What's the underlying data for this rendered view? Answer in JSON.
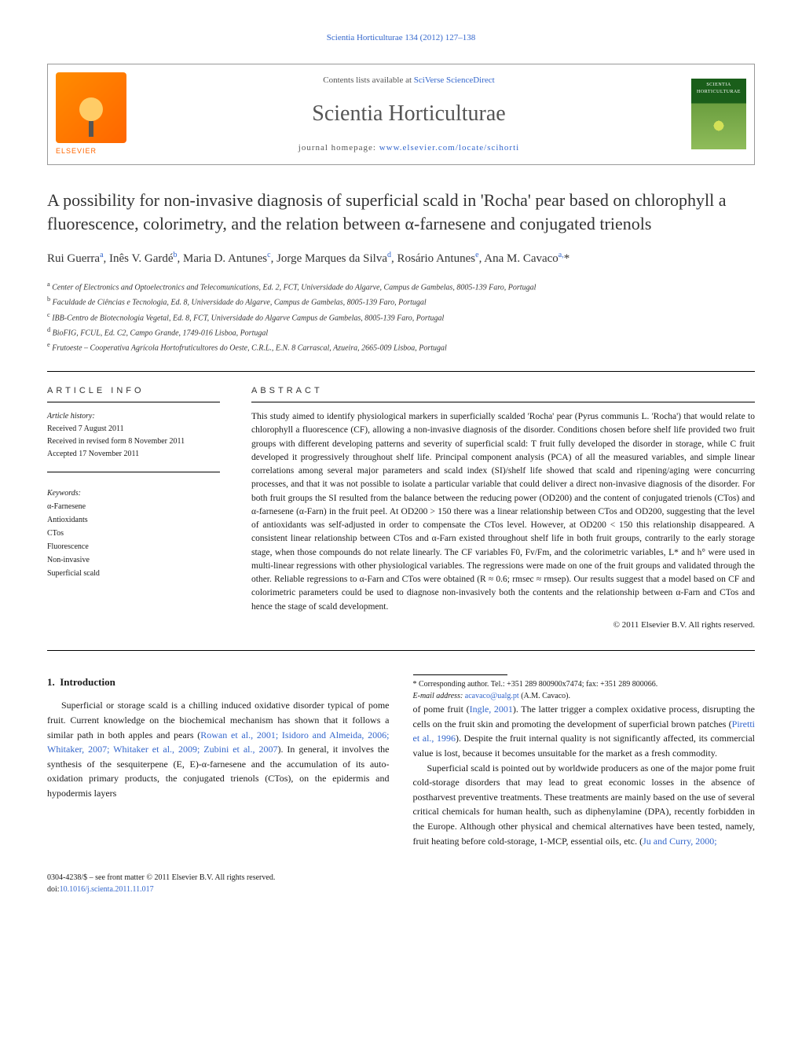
{
  "header": {
    "citation": "Scientia Horticulturae 134 (2012) 127–138",
    "publisher_logo_text": "ELSEVIER",
    "availability_prefix": "Contents lists available at ",
    "availability_link": "SciVerse ScienceDirect",
    "journal_name": "Scientia Horticulturae",
    "homepage_prefix": "journal homepage: ",
    "homepage_link": "www.elsevier.com/locate/scihorti",
    "cover_label": "SCIENTIA HORTICULTURAE"
  },
  "title": "A possibility for non-invasive diagnosis of superficial scald in 'Rocha' pear based on chlorophyll a fluorescence, colorimetry, and the relation between α-farnesene and conjugated trienols",
  "authors_html": "Rui Guerra<sup>a</sup>, Inês V. Gardé<sup>b</sup>, Maria D. Antunes<sup>c</sup>, Jorge Marques da Silva<sup>d</sup>, Rosário Antunes<sup>e</sup>, Ana M. Cavaco<sup>a,</sup>*",
  "affiliations": [
    "a Center of Electronics and Optoelectronics and Telecomunications, Ed. 2, FCT, Universidade do Algarve, Campus de Gambelas, 8005-139 Faro, Portugal",
    "b Faculdade de Ciências e Tecnologia, Ed. 8, Universidade do Algarve, Campus de Gambelas, 8005-139 Faro, Portugal",
    "c IBB-Centro de Biotecnologia Vegetal, Ed. 8, FCT, Universidade do Algarve Campus de Gambelas, 8005-139 Faro, Portugal",
    "d BioFIG, FCUL, Ed. C2, Campo Grande, 1749-016 Lisboa, Portugal",
    "e Frutoeste – Cooperativa Agrícola Hortofruticultores do Oeste, C.R.L., E.N. 8 Carrascal, Azueira, 2665-009 Lisboa, Portugal"
  ],
  "article_info": {
    "header": "ARTICLE INFO",
    "history_label": "Article history:",
    "received": "Received 7 August 2011",
    "revised": "Received in revised form 8 November 2011",
    "accepted": "Accepted 17 November 2011",
    "keywords_label": "Keywords:",
    "keywords": [
      "α-Farnesene",
      "Antioxidants",
      "CTos",
      "Fluorescence",
      "Non-invasive",
      "Superficial scald"
    ]
  },
  "abstract": {
    "header": "ABSTRACT",
    "text": "This study aimed to identify physiological markers in superficially scalded 'Rocha' pear (Pyrus communis L. 'Rocha') that would relate to chlorophyll a fluorescence (CF), allowing a non-invasive diagnosis of the disorder. Conditions chosen before shelf life provided two fruit groups with different developing patterns and severity of superficial scald: T fruit fully developed the disorder in storage, while C fruit developed it progressively throughout shelf life. Principal component analysis (PCA) of all the measured variables, and simple linear correlations among several major parameters and scald index (SI)/shelf life showed that scald and ripening/aging were concurring processes, and that it was not possible to isolate a particular variable that could deliver a direct non-invasive diagnosis of the disorder. For both fruit groups the SI resulted from the balance between the reducing power (OD200) and the content of conjugated trienols (CTos) and α-farnesene (α-Farn) in the fruit peel. At OD200 > 150 there was a linear relationship between CTos and OD200, suggesting that the level of antioxidants was self-adjusted in order to compensate the CTos level. However, at OD200 < 150 this relationship disappeared. A consistent linear relationship between CTos and α-Farn existed throughout shelf life in both fruit groups, contrarily to the early storage stage, when those compounds do not relate linearly. The CF variables F0, Fv/Fm, and the colorimetric variables, L* and h° were used in multi-linear regressions with other physiological variables. The regressions were made on one of the fruit groups and validated through the other. Reliable regressions to α-Farn and CTos were obtained (R ≈ 0.6; rmsec ≈ rmsep). Our results suggest that a model based on CF and colorimetric parameters could be used to diagnose non-invasively both the contents and the relationship between α-Farn and CTos and hence the stage of scald development.",
    "copyright": "© 2011 Elsevier B.V. All rights reserved."
  },
  "body": {
    "section_number": "1.",
    "section_title": "Introduction",
    "p1_pre": "Superficial or storage scald is a chilling induced oxidative disorder typical of pome fruit. Current knowledge on the biochemical mechanism has shown that it follows a similar path in both apples and pears (",
    "p1_link": "Rowan et al., 2001; Isidoro and Almeida, 2006; Whitaker, 2007; Whitaker et al., 2009; Zubini et al., 2007",
    "p1_post": "). In general, it involves the synthesis of the sesquiterpene (E, E)-α-farnesene and the accumulation of its auto-oxidation primary products, the conjugated trienols (CTos), on the epidermis and hypodermis layers",
    "p2_pre": "of pome fruit (",
    "p2_link1": "Ingle, 2001",
    "p2_mid": "). The latter trigger a complex oxidative process, disrupting the cells on the fruit skin and promoting the development of superficial brown patches (",
    "p2_link2": "Piretti et al., 1996",
    "p2_post": "). Despite the fruit internal quality is not significantly affected, its commercial value is lost, because it becomes unsuitable for the market as a fresh commodity.",
    "p3_pre": "Superficial scald is pointed out by worldwide producers as one of the major pome fruit cold-storage disorders that may lead to great economic losses in the absence of postharvest preventive treatments. These treatments are mainly based on the use of several critical chemicals for human health, such as diphenylamine (DPA), recently forbidden in the Europe. Although other physical and chemical alternatives have been tested, namely, fruit heating before cold-storage, 1-MCP, essential oils, etc. (",
    "p3_link": "Ju and Curry, 2000;"
  },
  "footnote": {
    "corr_label": "* Corresponding author. Tel.: +351 289 800900x7474; fax: +351 289 800066.",
    "email_label": "E-mail address: ",
    "email": "acavaco@ualg.pt",
    "email_post": " (A.M. Cavaco)."
  },
  "bottom": {
    "issn": "0304-4238/$ – see front matter © 2011 Elsevier B.V. All rights reserved.",
    "doi_prefix": "doi:",
    "doi": "10.1016/j.scienta.2011.11.017"
  },
  "colors": {
    "link": "#3366cc",
    "text": "#1a1a1a",
    "logo_orange": "#ff6600",
    "cover_green": "#1a5e1a"
  }
}
